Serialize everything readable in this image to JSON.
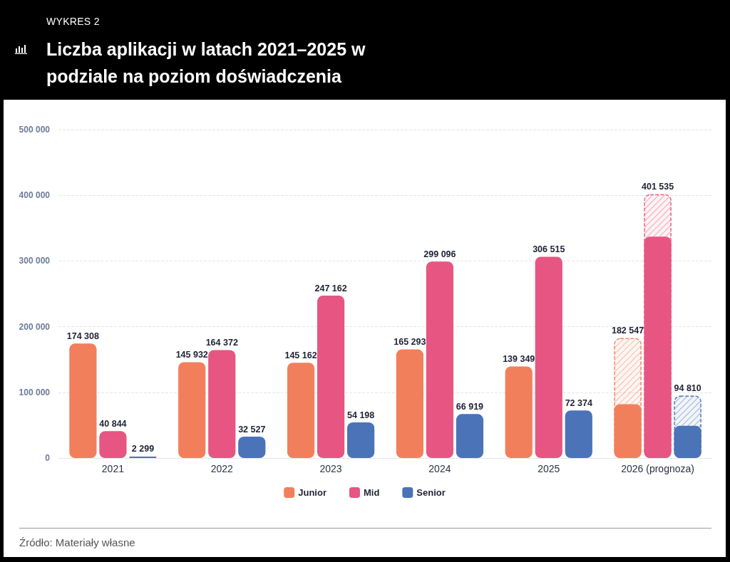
{
  "chart_data": {
    "type": "bar",
    "title": "Liczba aplikacji w latach 2021–2025 w podziale na poziom doświadczenia",
    "annotations": [
      "WYKRES 2",
      "Źródło: Materiały własne"
    ],
    "categories": [
      "2021",
      "2022",
      "2023",
      "2024",
      "2025",
      "2026 (prognoza)"
    ],
    "series": [
      {
        "name": "Junior",
        "color": "#f27f5b",
        "values": [
          174308,
          145932,
          145162,
          165293,
          139349,
          82000
        ],
        "value_labels": [
          "174 308",
          "145 932",
          "145 162",
          "165 293",
          "139 349",
          null
        ]
      },
      {
        "name": "Mid",
        "color": "#e75582",
        "values": [
          40844,
          164372,
          247162,
          299096,
          306515,
          337000
        ],
        "value_labels": [
          "40 844",
          "164 372",
          "247 162",
          "299 096",
          "306 515",
          null
        ]
      },
      {
        "name": "Senior",
        "color": "#4a73b8",
        "values": [
          2299,
          32527,
          54198,
          66919,
          72374,
          49000
        ],
        "value_labels": [
          "2 299",
          "32 527",
          "54 198",
          "66 919",
          "72 374",
          null
        ]
      },
      {
        "color": "#f27f5b",
        "line_style": "dashed",
        "values": [
          null,
          null,
          null,
          null,
          null,
          182547
        ],
        "value_labels": [
          null,
          null,
          null,
          null,
          null,
          "182 547"
        ]
      },
      {
        "color": "#e75582",
        "line_style": "dashed",
        "values": [
          null,
          null,
          null,
          null,
          null,
          401535
        ],
        "value_labels": [
          null,
          null,
          null,
          null,
          null,
          "401 535"
        ]
      },
      {
        "color": "#4a73b8",
        "line_style": "dashed",
        "values": [
          null,
          null,
          null,
          null,
          null,
          94810
        ],
        "value_labels": [
          null,
          null,
          null,
          null,
          null,
          "94 810"
        ]
      }
    ],
    "ylim": [
      0,
      500000
    ],
    "yticks": [
      0,
      {
        "value": 100000,
        "label": "100 000"
      },
      {
        "value": 200000,
        "label": "200 000"
      },
      {
        "value": 300000,
        "label": "300 000"
      },
      {
        "value": 400000,
        "label": "400 000"
      },
      {
        "value": 500000,
        "label": "500 000"
      }
    ],
    "grid": "y",
    "legend": "bottom"
  }
}
